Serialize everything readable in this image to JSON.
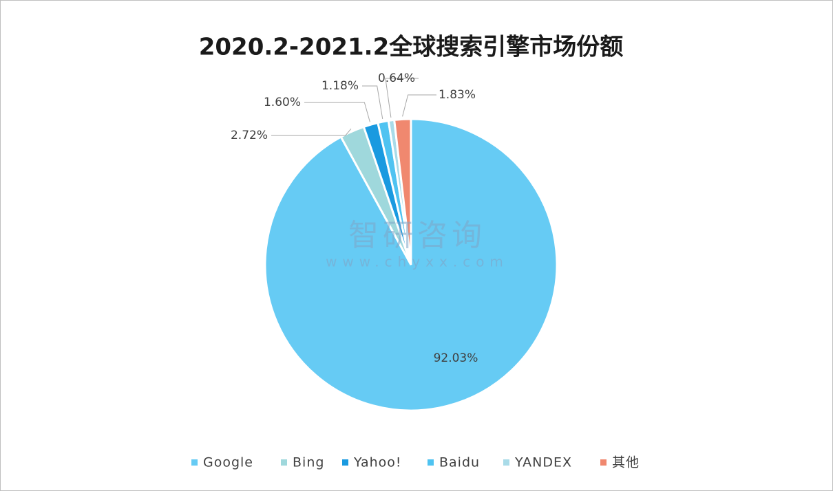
{
  "chart_data": {
    "type": "pie",
    "title": "2020.2-2021.2全球搜索引擎市场份额",
    "categories": [
      "Google",
      "Bing",
      "Yahoo!",
      "Baidu",
      "YANDEX",
      "其他"
    ],
    "values": [
      92.03,
      2.72,
      1.6,
      1.18,
      0.64,
      1.83
    ],
    "value_labels": [
      "92.03%",
      "2.72%",
      "1.60%",
      "1.18%",
      "0.64%",
      "1.83%"
    ],
    "colors": [
      "#66cbf4",
      "#9fd8dc",
      "#1a9ae0",
      "#4fc3f1",
      "#a9dbe8",
      "#f0886f"
    ],
    "legend": "bottom",
    "watermark": {
      "brand": "智研咨询",
      "url": "www.chyxx.com"
    }
  }
}
